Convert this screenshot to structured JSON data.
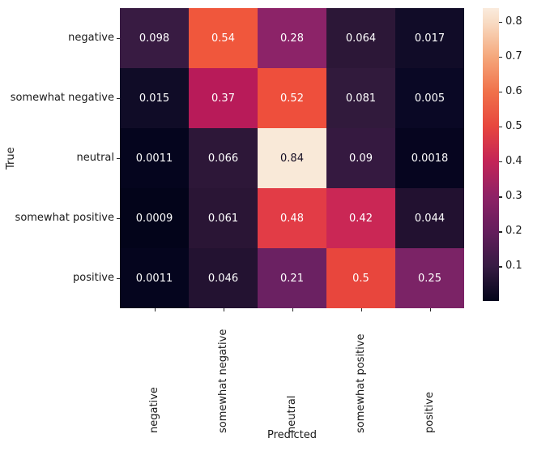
{
  "figure": {
    "background": "#ffffff",
    "text_color": "#1a1a1a"
  },
  "chart_data": {
    "type": "heatmap",
    "title": "",
    "xlabel": "Predicted",
    "ylabel": "True",
    "x_categories": [
      "negative",
      "somewhat negative",
      "neutral",
      "somewhat positive",
      "positive"
    ],
    "y_categories": [
      "negative",
      "somewhat negative",
      "neutral",
      "somewhat positive",
      "positive"
    ],
    "matrix_display": [
      [
        "0.098",
        "0.54",
        "0.28",
        "0.064",
        "0.017"
      ],
      [
        "0.015",
        "0.37",
        "0.52",
        "0.081",
        "0.005"
      ],
      [
        "0.0011",
        "0.066",
        "0.84",
        "0.09",
        "0.0018"
      ],
      [
        "0.0009",
        "0.061",
        "0.48",
        "0.42",
        "0.044"
      ],
      [
        "0.0011",
        "0.046",
        "0.21",
        "0.5",
        "0.25"
      ]
    ],
    "matrix_values": [
      [
        0.098,
        0.54,
        0.28,
        0.064,
        0.017
      ],
      [
        0.015,
        0.37,
        0.52,
        0.081,
        0.005
      ],
      [
        0.0011,
        0.066,
        0.84,
        0.09,
        0.0018
      ],
      [
        0.0009,
        0.061,
        0.48,
        0.42,
        0.044
      ],
      [
        0.0011,
        0.046,
        0.21,
        0.5,
        0.25
      ]
    ],
    "cell_colors": [
      [
        "#381b42",
        "#f0573c",
        "#8c2368",
        "#2c1737",
        "#110c28"
      ],
      [
        "#100c27",
        "#b81b59",
        "#ee4f3c",
        "#311a3c",
        "#0a0825"
      ],
      [
        "#05051e",
        "#2d1738",
        "#f9e9d8",
        "#351940",
        "#06051f"
      ],
      [
        "#03041a",
        "#2a1535",
        "#e23c46",
        "#ca2755",
        "#221130"
      ],
      [
        "#05051e",
        "#231231",
        "#6b2162",
        "#e8463d",
        "#7b2366"
      ]
    ],
    "cell_text_colors": [
      [
        "#ffffff",
        "#ffffff",
        "#ffffff",
        "#ffffff",
        "#ffffff"
      ],
      [
        "#ffffff",
        "#ffffff",
        "#ffffff",
        "#ffffff",
        "#ffffff"
      ],
      [
        "#ffffff",
        "#ffffff",
        "#160e24",
        "#ffffff",
        "#ffffff"
      ],
      [
        "#ffffff",
        "#ffffff",
        "#ffffff",
        "#ffffff",
        "#ffffff"
      ],
      [
        "#ffffff",
        "#ffffff",
        "#ffffff",
        "#ffffff",
        "#ffffff"
      ]
    ],
    "colorbar": {
      "vmin": 0.0009,
      "vmax": 0.84,
      "tick_labels": [
        "0.8",
        "0.7",
        "0.6",
        "0.5",
        "0.4",
        "0.3",
        "0.2",
        "0.1"
      ],
      "gradient_stops": [
        {
          "pos": 0,
          "color": "#faebdd"
        },
        {
          "pos": 4.8,
          "color": "#f8dcc4"
        },
        {
          "pos": 16.7,
          "color": "#f5a77b"
        },
        {
          "pos": 28.6,
          "color": "#f0714a"
        },
        {
          "pos": 40.5,
          "color": "#e7463e"
        },
        {
          "pos": 52.4,
          "color": "#c32457"
        },
        {
          "pos": 64.3,
          "color": "#8e2266"
        },
        {
          "pos": 76.3,
          "color": "#641d5c"
        },
        {
          "pos": 88.2,
          "color": "#371c43"
        },
        {
          "pos": 100,
          "color": "#03051a"
        }
      ]
    },
    "legend_position": "right",
    "grid": false
  }
}
